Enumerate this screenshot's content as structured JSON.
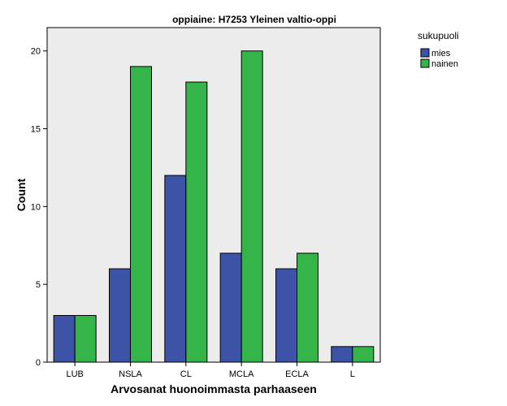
{
  "chart_data": {
    "type": "bar",
    "title": "oppiaine: H7253 Yleinen valtio-oppi",
    "xlabel": "Arvosanat huonoimmasta parhaaseen",
    "ylabel": "Count",
    "categories": [
      "LUB",
      "NSLA",
      "CL",
      "MCLA",
      "ECLA",
      "L"
    ],
    "series": [
      {
        "name": "mies",
        "values": [
          3,
          6,
          12,
          7,
          6,
          1
        ],
        "color": "#3d53a8"
      },
      {
        "name": "nainen",
        "values": [
          3,
          19,
          18,
          20,
          7,
          1
        ],
        "color": "#35b44a"
      }
    ],
    "ylim": [
      0,
      21.5
    ],
    "yticks": [
      0,
      5,
      10,
      15,
      20
    ],
    "legend_title": "sukupuoli",
    "legend_position": "top-right, outside plot",
    "plot_background": "#ececec",
    "grid": false
  }
}
